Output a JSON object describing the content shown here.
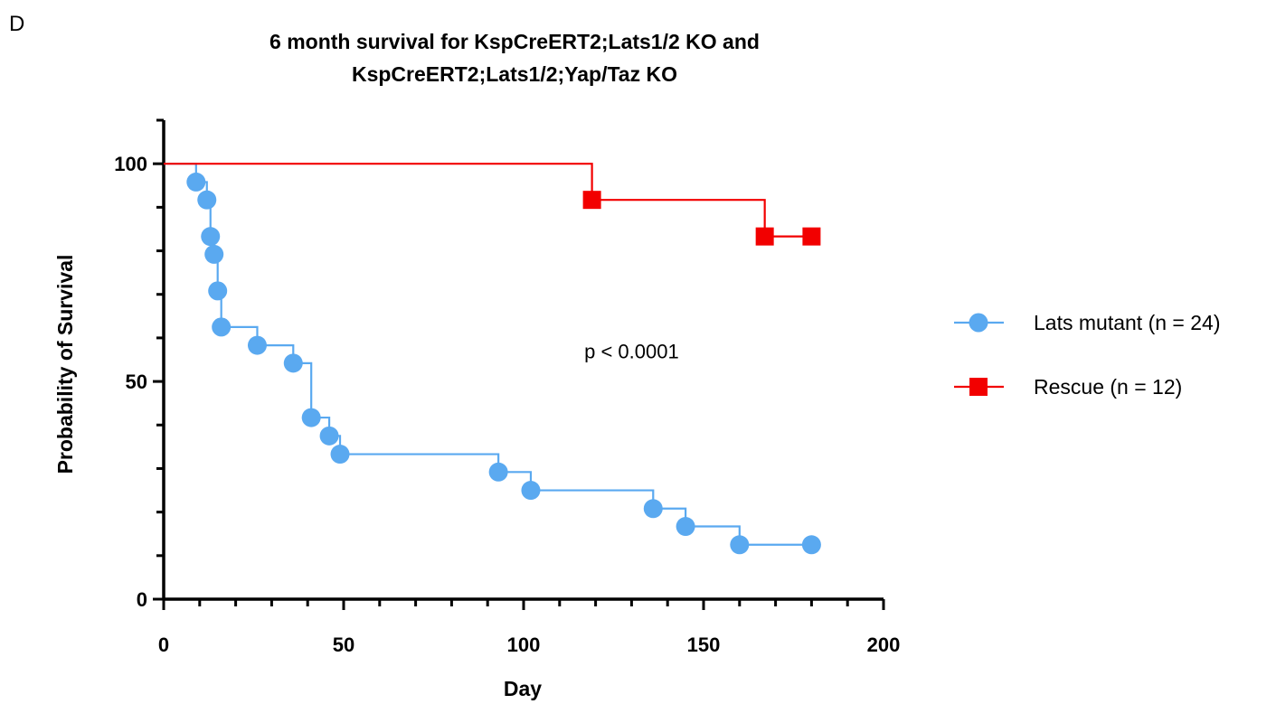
{
  "panel_label": "D",
  "chart_data": {
    "type": "line",
    "subtype": "kaplan-meier",
    "title_lines": [
      "6 month survival for KspCreERT2;Lats1/2 KO and",
      "KspCreERT2;Lats1/2;Yap/Taz KO"
    ],
    "xlabel": "Day",
    "ylabel": "Probability of Survival",
    "xlim": [
      0,
      200
    ],
    "ylim": [
      0,
      110
    ],
    "x_ticks": [
      0,
      50,
      100,
      150,
      200
    ],
    "y_ticks": [
      0,
      50,
      100
    ],
    "x_minor_step": 10,
    "y_minor_step": 10,
    "grid": false,
    "legend_position": "right",
    "annotation": {
      "text": "p < 0.0001",
      "x": 130,
      "y": 57
    },
    "series": [
      {
        "name": "Lats mutant (n = 24)",
        "color": "#5AA9F0",
        "marker": "circle",
        "steps": [
          [
            0,
            100
          ],
          [
            9,
            95.8
          ],
          [
            12,
            91.7
          ],
          [
            13,
            83.3
          ],
          [
            14,
            79.2
          ],
          [
            15,
            70.8
          ],
          [
            16,
            62.5
          ],
          [
            26,
            58.3
          ],
          [
            36,
            54.2
          ],
          [
            41,
            41.7
          ],
          [
            46,
            37.5
          ],
          [
            49,
            33.3
          ],
          [
            93,
            29.2
          ],
          [
            102,
            25
          ],
          [
            136,
            20.8
          ],
          [
            145,
            16.7
          ],
          [
            160,
            12.5
          ],
          [
            180,
            12.5
          ]
        ],
        "markers": [
          [
            9,
            95.8
          ],
          [
            12,
            91.7
          ],
          [
            13,
            83.3
          ],
          [
            14,
            79.2
          ],
          [
            15,
            70.8
          ],
          [
            16,
            62.5
          ],
          [
            26,
            58.3
          ],
          [
            36,
            54.2
          ],
          [
            41,
            41.7
          ],
          [
            46,
            37.5
          ],
          [
            49,
            33.3
          ],
          [
            93,
            29.2
          ],
          [
            102,
            25
          ],
          [
            136,
            20.8
          ],
          [
            145,
            16.7
          ],
          [
            160,
            12.5
          ],
          [
            180,
            12.5
          ]
        ]
      },
      {
        "name": "Rescue (n = 12)",
        "color": "#F20000",
        "marker": "square",
        "steps": [
          [
            0,
            100
          ],
          [
            119,
            91.7
          ],
          [
            167,
            83.3
          ],
          [
            180,
            83.3
          ]
        ],
        "markers": [
          [
            119,
            91.7
          ],
          [
            167,
            83.3
          ],
          [
            180,
            83.3
          ]
        ]
      }
    ]
  }
}
